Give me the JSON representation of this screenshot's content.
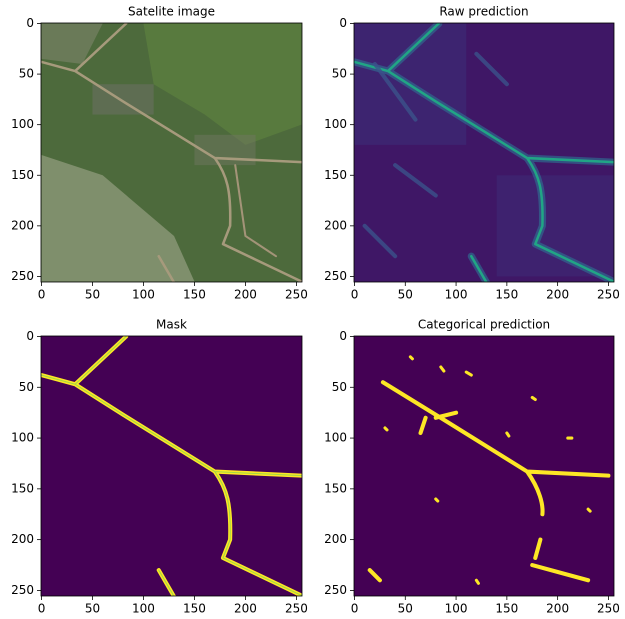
{
  "chart_data": [
    {
      "type": "image",
      "title": "Satelite image",
      "xlim": [
        -0.5,
        255.5
      ],
      "ylim": [
        255.5,
        -0.5
      ],
      "xticks": [
        0,
        50,
        100,
        150,
        200,
        250
      ],
      "yticks": [
        0,
        50,
        100,
        150,
        200,
        250
      ]
    },
    {
      "type": "image",
      "title": "Raw prediction",
      "xlim": [
        -0.5,
        255.5
      ],
      "ylim": [
        255.5,
        -0.5
      ],
      "xticks": [
        0,
        50,
        100,
        150,
        200,
        250
      ],
      "yticks": [
        0,
        50,
        100,
        150,
        200,
        250
      ]
    },
    {
      "type": "image",
      "title": "Mask",
      "xlim": [
        -0.5,
        255.5
      ],
      "ylim": [
        255.5,
        -0.5
      ],
      "xticks": [
        0,
        50,
        100,
        150,
        200,
        250
      ],
      "yticks": [
        0,
        50,
        100,
        150,
        200,
        250
      ]
    },
    {
      "type": "image",
      "title": "Categorical prediction",
      "xlim": [
        -0.5,
        255.5
      ],
      "ylim": [
        255.5,
        -0.5
      ],
      "xticks": [
        0,
        50,
        100,
        150,
        200,
        250
      ],
      "yticks": [
        0,
        50,
        100,
        150,
        200,
        250
      ]
    }
  ]
}
